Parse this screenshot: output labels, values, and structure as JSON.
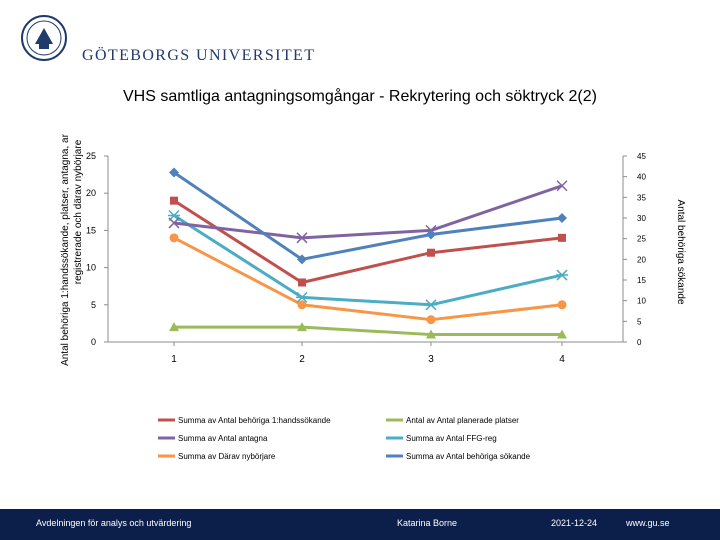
{
  "header": {
    "university": "GÖTEBORGS UNIVERSITET",
    "logo_icon": "university-seal-icon"
  },
  "footer": {
    "department": "Avdelningen för analys och utvärdering",
    "author": "Katarina Borne",
    "date": "2021-12-24",
    "website": "www.gu.se",
    "background": "#0c1f4a"
  },
  "chart_data": {
    "type": "line",
    "title": "VHS samtliga antagningsomgångar - Rekrytering och söktryck 2(2)",
    "categories": [
      "1",
      "2",
      "3",
      "4"
    ],
    "ylabel": "Antal behöriga 1:handssökande, platser, antagna, ar registrerade och därav nybörjare",
    "ylabel_line1": "Antal behöriga 1:handssökande, platser, antagna, ar",
    "ylabel_line2": "registrerade och därav nybörjare",
    "y2label": "Antal behöriga sökande",
    "ylim": [
      0,
      25
    ],
    "yticks": [
      0,
      5,
      10,
      15,
      20,
      25
    ],
    "y2lim": [
      0,
      45
    ],
    "y2ticks": [
      0,
      5,
      10,
      15,
      20,
      25,
      30,
      35,
      40,
      45
    ],
    "legend_position": "bottom",
    "series": [
      {
        "name": "Summa av Antal behöriga 1:handssökande",
        "values": [
          19,
          8,
          12,
          14
        ],
        "axis": "left",
        "color": "#c0504d",
        "marker": "square"
      },
      {
        "name": "Antal av Antal planerade platser",
        "values": [
          2,
          2,
          1,
          1
        ],
        "axis": "left",
        "color": "#9bbb59",
        "marker": "triangle"
      },
      {
        "name": "Summa av Antal antagna",
        "values": [
          16,
          14,
          15,
          21
        ],
        "axis": "left",
        "color": "#8064a2",
        "marker": "x"
      },
      {
        "name": "Summa av Antal FFG-reg",
        "values": [
          17,
          6,
          5,
          9
        ],
        "axis": "left",
        "color": "#4bacc6",
        "marker": "star"
      },
      {
        "name": "Summa av Därav nybörjare",
        "values": [
          14,
          5,
          3,
          5
        ],
        "axis": "left",
        "color": "#f79646",
        "marker": "circle"
      },
      {
        "name": "Summa av Antal behöriga sökande",
        "values": [
          41,
          20,
          26,
          30
        ],
        "axis": "right",
        "color": "#4f81bd",
        "marker": "diamond"
      }
    ]
  }
}
